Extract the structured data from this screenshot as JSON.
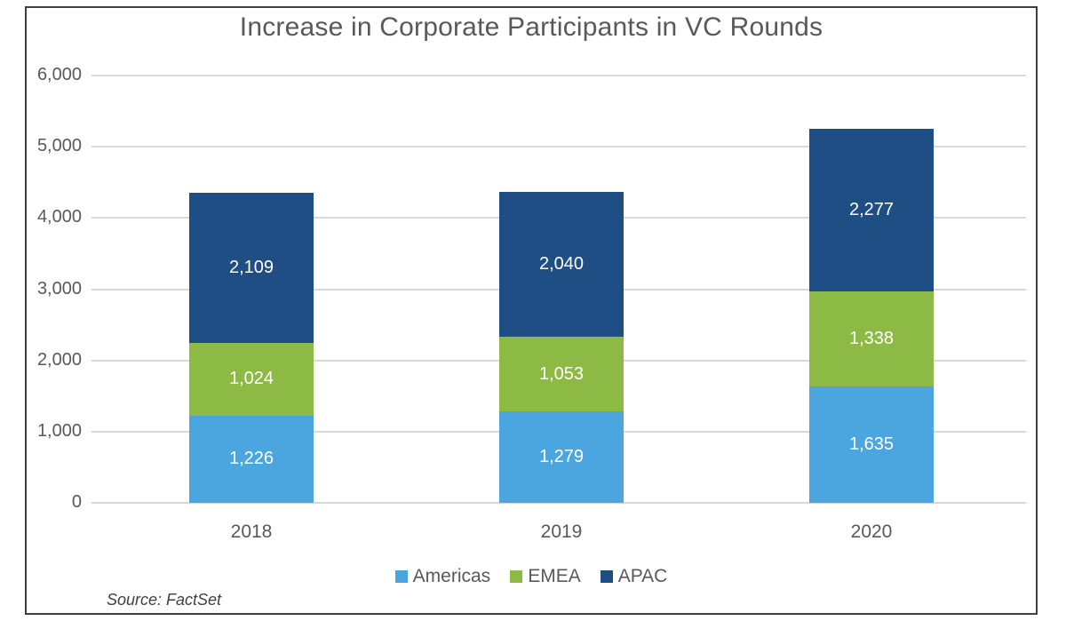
{
  "title": "Increase in Corporate Participants in VC Rounds",
  "source_note": "Source: FactSet",
  "colors": {
    "grid": "#d9d9d9",
    "axis_text": "#595959",
    "frame": "#3f3f3f",
    "data_label": "#ffffff",
    "americas": "#4ba6df",
    "emea": "#8dba44",
    "apac": "#1f4e85"
  },
  "chart_data": {
    "type": "bar",
    "stacked": true,
    "title": "Increase in Corporate Participants in VC Rounds",
    "categories": [
      "2018",
      "2019",
      "2020"
    ],
    "series": [
      {
        "name": "Americas",
        "color": "#4ba6df",
        "values": [
          1226,
          1279,
          1635
        ],
        "labels": [
          "1,226",
          "1,279",
          "1,635"
        ]
      },
      {
        "name": "EMEA",
        "color": "#8dba44",
        "values": [
          1024,
          1053,
          1338
        ],
        "labels": [
          "1,024",
          "1,053",
          "1,338"
        ]
      },
      {
        "name": "APAC",
        "color": "#1f4e85",
        "values": [
          2109,
          2040,
          2277
        ],
        "labels": [
          "2,109",
          "2,040",
          "2,277"
        ]
      }
    ],
    "xlabel": "",
    "ylabel": "",
    "ylim": [
      0,
      6000
    ],
    "ytick_step": 1000,
    "ytick_values": [
      0,
      1000,
      2000,
      3000,
      4000,
      5000,
      6000
    ],
    "ytick_labels": [
      "0",
      "1,000",
      "2,000",
      "3,000",
      "4,000",
      "5,000",
      "6,000"
    ],
    "grid": true,
    "legend_position": "bottom",
    "legend_entries": [
      "Americas",
      "EMEA",
      "APAC"
    ]
  }
}
